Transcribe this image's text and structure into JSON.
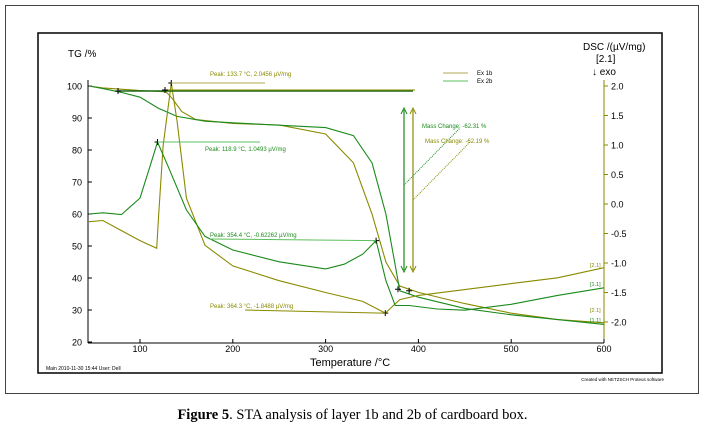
{
  "caption": {
    "label": "Figure 5",
    "text": ". STA analysis of layer 1b and 2b of cardboard box."
  },
  "footer": {
    "left": "Main   2010-11-30 15:44    User: Dell",
    "right": "Created with NETZSCH Proteus software"
  },
  "chart_data": {
    "type": "line",
    "title": "",
    "xlabel": "Temperature /°C",
    "ylabel": "TG /%",
    "y2label": "DSC /(µV/mg)",
    "y2sublabel": "[2.1]",
    "exo_label": "↓ exo",
    "xlim": [
      45,
      600
    ],
    "ylim": [
      20,
      100
    ],
    "y2lim": [
      -2.2,
      2.2
    ],
    "xticks": [
      100,
      200,
      300,
      400,
      500,
      600
    ],
    "yticks": [
      20,
      30,
      40,
      50,
      60,
      70,
      80,
      90,
      100
    ],
    "y2ticks": [
      "2.0",
      "1.5",
      "1.0",
      "0.5",
      "0.0",
      "-0.5",
      "-1.0",
      "-1.5",
      "-2.0"
    ],
    "legend": {
      "placement": "top-right",
      "entries": [
        "Ex 1b",
        "Ex 2b"
      ]
    },
    "colors": {
      "ex1b": "#8a8a00",
      "ex2b": "#1a8a1a",
      "ex1b_light": "#b0a850",
      "ex2b_light": "#5cbf5c"
    },
    "series": [
      {
        "name": "Ex 1b TG",
        "axis": "TG",
        "color": "ex1b",
        "x": [
          45,
          60,
          100,
          128,
          135,
          145,
          160,
          200,
          250,
          300,
          330,
          350,
          365,
          380,
          400,
          450,
          500,
          550,
          600
        ],
        "y": [
          100,
          99.4,
          98.6,
          98.2,
          96,
          92,
          89.5,
          88.3,
          87.8,
          85,
          76,
          60,
          45,
          37.5,
          35.5,
          32,
          29,
          27,
          26
        ]
      },
      {
        "name": "Ex 2b TG",
        "axis": "TG",
        "color": "ex2b",
        "x": [
          45,
          60,
          80,
          100,
          120,
          140,
          170,
          200,
          300,
          330,
          350,
          365,
          375,
          380,
          400,
          450,
          500,
          550,
          600
        ],
        "y": [
          100,
          99.2,
          98,
          96.5,
          93,
          90.5,
          89,
          88.5,
          87,
          84.5,
          76,
          60,
          44,
          36,
          34,
          30.5,
          28.5,
          27,
          25.5
        ]
      },
      {
        "name": "Ex 1b DSC",
        "axis": "DSC",
        "color": "ex1b",
        "x": [
          45,
          60,
          80,
          100,
          118,
          120,
          125,
          133.7,
          140,
          150,
          170,
          200,
          250,
          300,
          340,
          364.3,
          380,
          400,
          450,
          500,
          550,
          600
        ],
        "y": [
          -0.3,
          -0.28,
          -0.45,
          -0.62,
          -0.75,
          -0.2,
          1.0,
          2.05,
          1.4,
          0.1,
          -0.7,
          -1.05,
          -1.3,
          -1.5,
          -1.65,
          -1.85,
          -1.62,
          -1.55,
          -1.45,
          -1.35,
          -1.25,
          -1.08
        ]
      },
      {
        "name": "Ex 2b DSC",
        "axis": "DSC",
        "color": "ex2b",
        "x": [
          45,
          60,
          80,
          100,
          110,
          118.9,
          130,
          150,
          170,
          200,
          250,
          300,
          320,
          340,
          354.4,
          365,
          375,
          390,
          420,
          450,
          500,
          550,
          600
        ],
        "y": [
          -0.17,
          -0.15,
          -0.18,
          0.1,
          0.6,
          1.05,
          0.65,
          -0.1,
          -0.55,
          -0.78,
          -0.98,
          -1.1,
          -1.02,
          -0.85,
          -0.62,
          -1.3,
          -1.72,
          -1.72,
          -1.78,
          -1.8,
          -1.7,
          -1.55,
          -1.42
        ]
      }
    ],
    "annotations": {
      "peak1": "Peak: 133.7 °C, 2.0456 µV/mg",
      "peak2": "Peak: 118.9 °C, 1.0493 µV/mg",
      "peak3": "Peak: 354.4 °C, -0.62262 µV/mg",
      "peak4": "Peak: 364.3 °C, -1.8488 µV/mg",
      "mass1": "Mass Change: -62.31 %",
      "mass2": "Mass Change: -62.19 %",
      "end1": "[2.1]",
      "end2": "[1.1]",
      "end3": "[2.1]",
      "end4": "[1.1]"
    }
  }
}
